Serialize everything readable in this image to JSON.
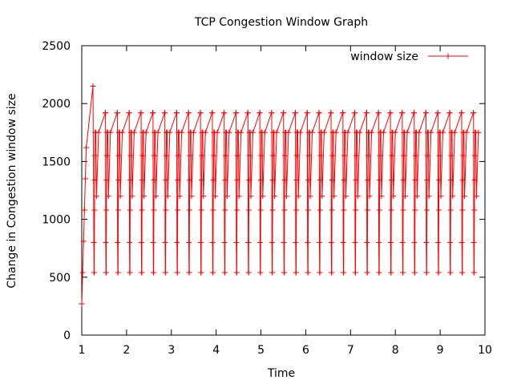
{
  "chart_data": {
    "type": "line",
    "title": "TCP Congestion Window Graph",
    "xlabel": "Time",
    "ylabel": "Change in Congestion window size",
    "xlim": [
      1,
      10
    ],
    "ylim": [
      0,
      2500
    ],
    "xticks": [
      1,
      2,
      3,
      4,
      5,
      6,
      7,
      8,
      9,
      10
    ],
    "yticks": [
      0,
      500,
      1000,
      1500,
      2000,
      2500
    ],
    "grid": false,
    "legend": "top-right",
    "series": [
      {
        "name": "window size",
        "color": "#ff0000",
        "marker": "plus",
        "initial": [
          [
            1.0,
            270
          ],
          [
            1.02,
            540
          ],
          [
            1.04,
            810
          ],
          [
            1.06,
            1080
          ],
          [
            1.08,
            1350
          ],
          [
            1.1,
            1620
          ],
          [
            1.25,
            2150
          ],
          [
            1.27,
            800
          ]
        ],
        "cycle": {
          "start": 1.27,
          "period": 0.265,
          "count": 33,
          "offsets": [
            0,
            0.005,
            0.01,
            0.015,
            0.02,
            0.025,
            0.03,
            0.045,
            0.06,
            0.105,
            0.255,
            0.26,
            0.265
          ],
          "values": [
            800,
            540,
            540,
            1080,
            1340,
            1550,
            1750,
            1750,
            1200,
            1750,
            1920,
            1920,
            800
          ]
        }
      }
    ]
  }
}
